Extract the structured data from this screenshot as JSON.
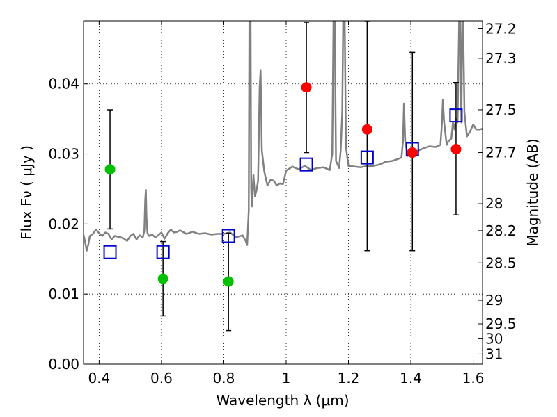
{
  "chart_data": {
    "type": "scatter",
    "xlabel": "Wavelength  λ (μm)",
    "ylabel": "Flux  Fν  ( μJy )",
    "ylabel_right": "Magnitude (AB)",
    "xlim": [
      0.35,
      1.63
    ],
    "ylim": [
      0.0,
      0.049
    ],
    "grid": true,
    "x_ticks": [
      {
        "value": 0.4,
        "label": "0.4"
      },
      {
        "value": 0.6,
        "label": "0.6"
      },
      {
        "value": 0.8,
        "label": "0.8"
      },
      {
        "value": 1.0,
        "label": "1"
      },
      {
        "value": 1.2,
        "label": "1.2"
      },
      {
        "value": 1.4,
        "label": "1.4"
      },
      {
        "value": 1.6,
        "label": "1.6"
      }
    ],
    "y_ticks": [
      {
        "value": 0.0,
        "label": "0.00"
      },
      {
        "value": 0.01,
        "label": "0.01"
      },
      {
        "value": 0.02,
        "label": "0.02"
      },
      {
        "value": 0.03,
        "label": "0.03"
      },
      {
        "value": 0.04,
        "label": "0.04"
      }
    ],
    "magnitude_ticks": [
      {
        "value": 27.2,
        "label": "27.2"
      },
      {
        "value": 27.3,
        "label": "27.3"
      },
      {
        "value": 27.5,
        "label": "27.5"
      },
      {
        "value": 27.7,
        "label": "27.7"
      },
      {
        "value": 28.0,
        "label": "28"
      },
      {
        "value": 28.2,
        "label": "28.2"
      },
      {
        "value": 28.5,
        "label": "28.5"
      },
      {
        "value": 29.0,
        "label": "29"
      },
      {
        "value": 29.5,
        "label": "29.5"
      },
      {
        "value": 30.0,
        "label": "30"
      },
      {
        "value": 31.0,
        "label": "31"
      }
    ],
    "magnitude_zero_point": 23.9,
    "series": [
      {
        "kind": "spectrum",
        "color": "#808080",
        "points": [
          [
            0.35,
            0.0185
          ],
          [
            0.355,
            0.0175
          ],
          [
            0.36,
            0.0162
          ],
          [
            0.365,
            0.017
          ],
          [
            0.37,
            0.0183
          ],
          [
            0.38,
            0.0186
          ],
          [
            0.39,
            0.0192
          ],
          [
            0.4,
            0.0187
          ],
          [
            0.41,
            0.0183
          ],
          [
            0.42,
            0.0188
          ],
          [
            0.43,
            0.0186
          ],
          [
            0.44,
            0.0178
          ],
          [
            0.45,
            0.0183
          ],
          [
            0.46,
            0.0182
          ],
          [
            0.47,
            0.0181
          ],
          [
            0.48,
            0.0179
          ],
          [
            0.49,
            0.0176
          ],
          [
            0.5,
            0.0183
          ],
          [
            0.51,
            0.0186
          ],
          [
            0.52,
            0.0178
          ],
          [
            0.53,
            0.0184
          ],
          [
            0.54,
            0.0181
          ],
          [
            0.545,
            0.019
          ],
          [
            0.548,
            0.0235
          ],
          [
            0.55,
            0.0249
          ],
          [
            0.552,
            0.021
          ],
          [
            0.555,
            0.0187
          ],
          [
            0.56,
            0.0183
          ],
          [
            0.57,
            0.0185
          ],
          [
            0.58,
            0.0181
          ],
          [
            0.59,
            0.0184
          ],
          [
            0.6,
            0.0188
          ],
          [
            0.61,
            0.0179
          ],
          [
            0.62,
            0.0187
          ],
          [
            0.63,
            0.0192
          ],
          [
            0.64,
            0.0188
          ],
          [
            0.65,
            0.0189
          ],
          [
            0.66,
            0.0191
          ],
          [
            0.68,
            0.0186
          ],
          [
            0.7,
            0.0189
          ],
          [
            0.72,
            0.0186
          ],
          [
            0.74,
            0.0187
          ],
          [
            0.76,
            0.0185
          ],
          [
            0.78,
            0.0186
          ],
          [
            0.8,
            0.0186
          ],
          [
            0.82,
            0.0188
          ],
          [
            0.84,
            0.0181
          ],
          [
            0.86,
            0.0184
          ],
          [
            0.87,
            0.0176
          ],
          [
            0.875,
            0.017
          ],
          [
            0.88,
            0.022
          ],
          [
            0.882,
            0.049
          ],
          [
            0.886,
            0.049
          ],
          [
            0.888,
            0.025
          ],
          [
            0.89,
            0.0225
          ],
          [
            0.895,
            0.027
          ],
          [
            0.9,
            0.024
          ],
          [
            0.905,
            0.0248
          ],
          [
            0.91,
            0.0262
          ],
          [
            0.915,
            0.0395
          ],
          [
            0.918,
            0.042
          ],
          [
            0.922,
            0.0305
          ],
          [
            0.93,
            0.0275
          ],
          [
            0.94,
            0.0255
          ],
          [
            0.95,
            0.0263
          ],
          [
            0.96,
            0.0262
          ],
          [
            0.97,
            0.0255
          ],
          [
            0.98,
            0.0258
          ],
          [
            0.99,
            0.0257
          ],
          [
            1.0,
            0.0276
          ],
          [
            1.02,
            0.0282
          ],
          [
            1.04,
            0.0278
          ],
          [
            1.06,
            0.0283
          ],
          [
            1.08,
            0.0277
          ],
          [
            1.1,
            0.028
          ],
          [
            1.12,
            0.0281
          ],
          [
            1.14,
            0.0277
          ],
          [
            1.148,
            0.03
          ],
          [
            1.152,
            0.049
          ],
          [
            1.156,
            0.049
          ],
          [
            1.16,
            0.029
          ],
          [
            1.17,
            0.028
          ],
          [
            1.175,
            0.0305
          ],
          [
            1.18,
            0.036
          ],
          [
            1.183,
            0.049
          ],
          [
            1.188,
            0.049
          ],
          [
            1.192,
            0.031
          ],
          [
            1.2,
            0.0283
          ],
          [
            1.22,
            0.0282
          ],
          [
            1.24,
            0.0281
          ],
          [
            1.26,
            0.0283
          ],
          [
            1.28,
            0.0283
          ],
          [
            1.3,
            0.0285
          ],
          [
            1.32,
            0.0289
          ],
          [
            1.34,
            0.029
          ],
          [
            1.36,
            0.0293
          ],
          [
            1.37,
            0.0295
          ],
          [
            1.375,
            0.0318
          ],
          [
            1.378,
            0.0372
          ],
          [
            1.382,
            0.0318
          ],
          [
            1.39,
            0.0297
          ],
          [
            1.4,
            0.0301
          ],
          [
            1.42,
            0.0304
          ],
          [
            1.44,
            0.0308
          ],
          [
            1.46,
            0.0311
          ],
          [
            1.48,
            0.031
          ],
          [
            1.495,
            0.0313
          ],
          [
            1.5,
            0.0345
          ],
          [
            1.503,
            0.0377
          ],
          [
            1.507,
            0.0345
          ],
          [
            1.515,
            0.0313
          ],
          [
            1.52,
            0.0318
          ],
          [
            1.53,
            0.0322
          ],
          [
            1.535,
            0.0345
          ],
          [
            1.54,
            0.0335
          ],
          [
            1.545,
            0.035
          ],
          [
            1.55,
            0.0345
          ],
          [
            1.555,
            0.049
          ],
          [
            1.558,
            0.049
          ],
          [
            1.562,
            0.0345
          ],
          [
            1.565,
            0.049
          ],
          [
            1.568,
            0.049
          ],
          [
            1.572,
            0.036
          ],
          [
            1.58,
            0.0325
          ],
          [
            1.59,
            0.0332
          ],
          [
            1.6,
            0.0342
          ],
          [
            1.61,
            0.0335
          ],
          [
            1.62,
            0.0335
          ],
          [
            1.63,
            0.0336
          ]
        ]
      },
      {
        "kind": "model_photometry",
        "marker": "open-square",
        "color": "#0000cc",
        "points": [
          {
            "x": 0.435,
            "y": 0.016
          },
          {
            "x": 0.605,
            "y": 0.016
          },
          {
            "x": 0.815,
            "y": 0.0183
          },
          {
            "x": 1.065,
            "y": 0.0285
          },
          {
            "x": 1.26,
            "y": 0.0295
          },
          {
            "x": 1.405,
            "y": 0.0307
          },
          {
            "x": 1.545,
            "y": 0.0355
          }
        ]
      },
      {
        "kind": "measured_photometry",
        "marker": "filled-circle",
        "color": "#00c000",
        "points": [
          {
            "x": 0.435,
            "y": 0.0278,
            "ylo": 0.0193,
            "yhi": 0.0363
          },
          {
            "x": 0.605,
            "y": 0.0122,
            "ylo": 0.0069,
            "yhi": 0.0175
          },
          {
            "x": 0.815,
            "y": 0.0118,
            "ylo": 0.0048,
            "yhi": 0.0187
          }
        ]
      },
      {
        "kind": "measured_photometry",
        "marker": "filled-circle",
        "color": "#ff0000",
        "points": [
          {
            "x": 1.065,
            "y": 0.0395,
            "ylo": 0.0302,
            "yhi": 0.0488
          },
          {
            "x": 1.26,
            "y": 0.0335,
            "ylo": 0.0162,
            "yhi": 0.049
          },
          {
            "x": 1.405,
            "y": 0.0302,
            "ylo": 0.0162,
            "yhi": 0.0445
          },
          {
            "x": 1.545,
            "y": 0.0307,
            "ylo": 0.0213,
            "yhi": 0.0402
          }
        ]
      }
    ]
  }
}
